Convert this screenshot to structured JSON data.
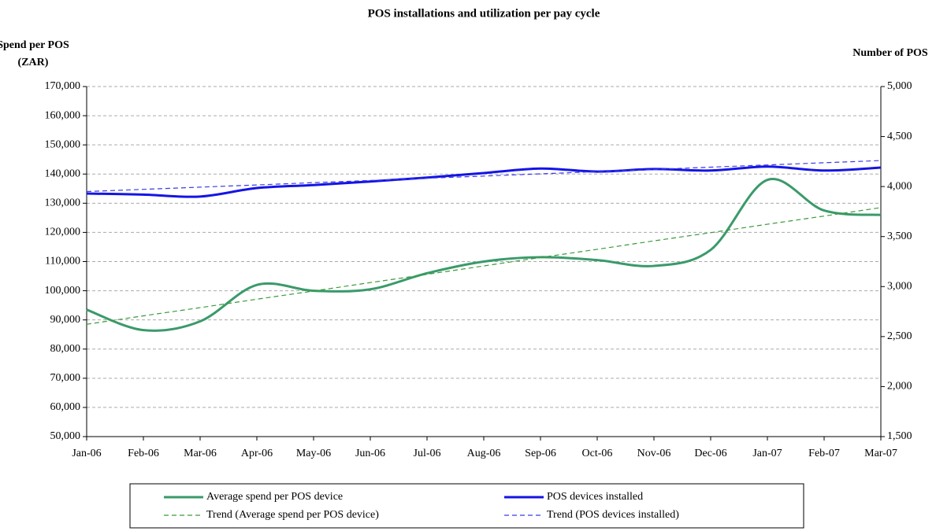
{
  "chart_data": {
    "type": "line",
    "title": "POS installations and utilization per pay cycle",
    "y_label": [
      "Spend per POS",
      "(ZAR)"
    ],
    "y2_label": "Number of POS",
    "categories": [
      "Jan-06",
      "Feb-06",
      "Mar-06",
      "Apr-06",
      "May-06",
      "Jun-06",
      "Jul-06",
      "Aug-06",
      "Sep-06",
      "Oct-06",
      "Nov-06",
      "Dec-06",
      "Jan-07",
      "Feb-07",
      "Mar-07"
    ],
    "series": [
      {
        "name": "Average spend per POS device",
        "color": "#3a9a6a",
        "style": "solid",
        "values": [
          93500,
          86500,
          89500,
          102000,
          100000,
          100500,
          106000,
          110000,
          111500,
          110500,
          108500,
          114000,
          138000,
          127500,
          126000
        ]
      },
      {
        "name": "POS devices installed",
        "color": "#1414e6",
        "style": "solid",
        "axis": "y2",
        "values": [
          3930,
          3920,
          3900,
          3985,
          4015,
          4050,
          4090,
          4135,
          4180,
          4150,
          4175,
          4160,
          4200,
          4160,
          4190
        ]
      },
      {
        "name": "Trend (Average spend per POS device)",
        "color": "#3a9a3a",
        "style": "dashed",
        "values": [
          88500,
          91400,
          94200,
          97100,
          99900,
          102800,
          105600,
          108500,
          111400,
          114200,
          117100,
          119900,
          122800,
          125600,
          128500
        ]
      },
      {
        "name": "Trend (POS devices installed)",
        "color": "#3a3ae6",
        "style": "dashed",
        "axis": "y2",
        "values": [
          3950,
          3972,
          3994,
          4016,
          4039,
          4061,
          4083,
          4105,
          4127,
          4149,
          4171,
          4194,
          4216,
          4238,
          4260
        ]
      }
    ],
    "ylim": [
      50000,
      170000
    ],
    "yticks": [
      {
        "value": 50000,
        "label": "50,000"
      },
      {
        "value": 60000,
        "label": "60,000"
      },
      {
        "value": 70000,
        "label": "70,000"
      },
      {
        "value": 80000,
        "label": "80,000"
      },
      {
        "value": 90000,
        "label": "90,000"
      },
      {
        "value": 100000,
        "label": "100,000"
      },
      {
        "value": 110000,
        "label": "110,000"
      },
      {
        "value": 120000,
        "label": "120,000"
      },
      {
        "value": 130000,
        "label": "130,000"
      },
      {
        "value": 140000,
        "label": "140,000"
      },
      {
        "value": 150000,
        "label": "150,000"
      },
      {
        "value": 160000,
        "label": "160,000"
      },
      {
        "value": 170000,
        "label": "170,000"
      }
    ],
    "y2lim": [
      1500,
      5000
    ],
    "y2ticks": [
      {
        "value": 1500,
        "label": "1,500"
      },
      {
        "value": 2000,
        "label": "2,000"
      },
      {
        "value": 2500,
        "label": "2,500"
      },
      {
        "value": 3000,
        "label": "3,000"
      },
      {
        "value": 3500,
        "label": "3,500"
      },
      {
        "value": 4000,
        "label": "4,000"
      },
      {
        "value": 4500,
        "label": "4,500"
      },
      {
        "value": 5000,
        "label": "5,000"
      }
    ],
    "grid": true,
    "legend": "bottom"
  }
}
